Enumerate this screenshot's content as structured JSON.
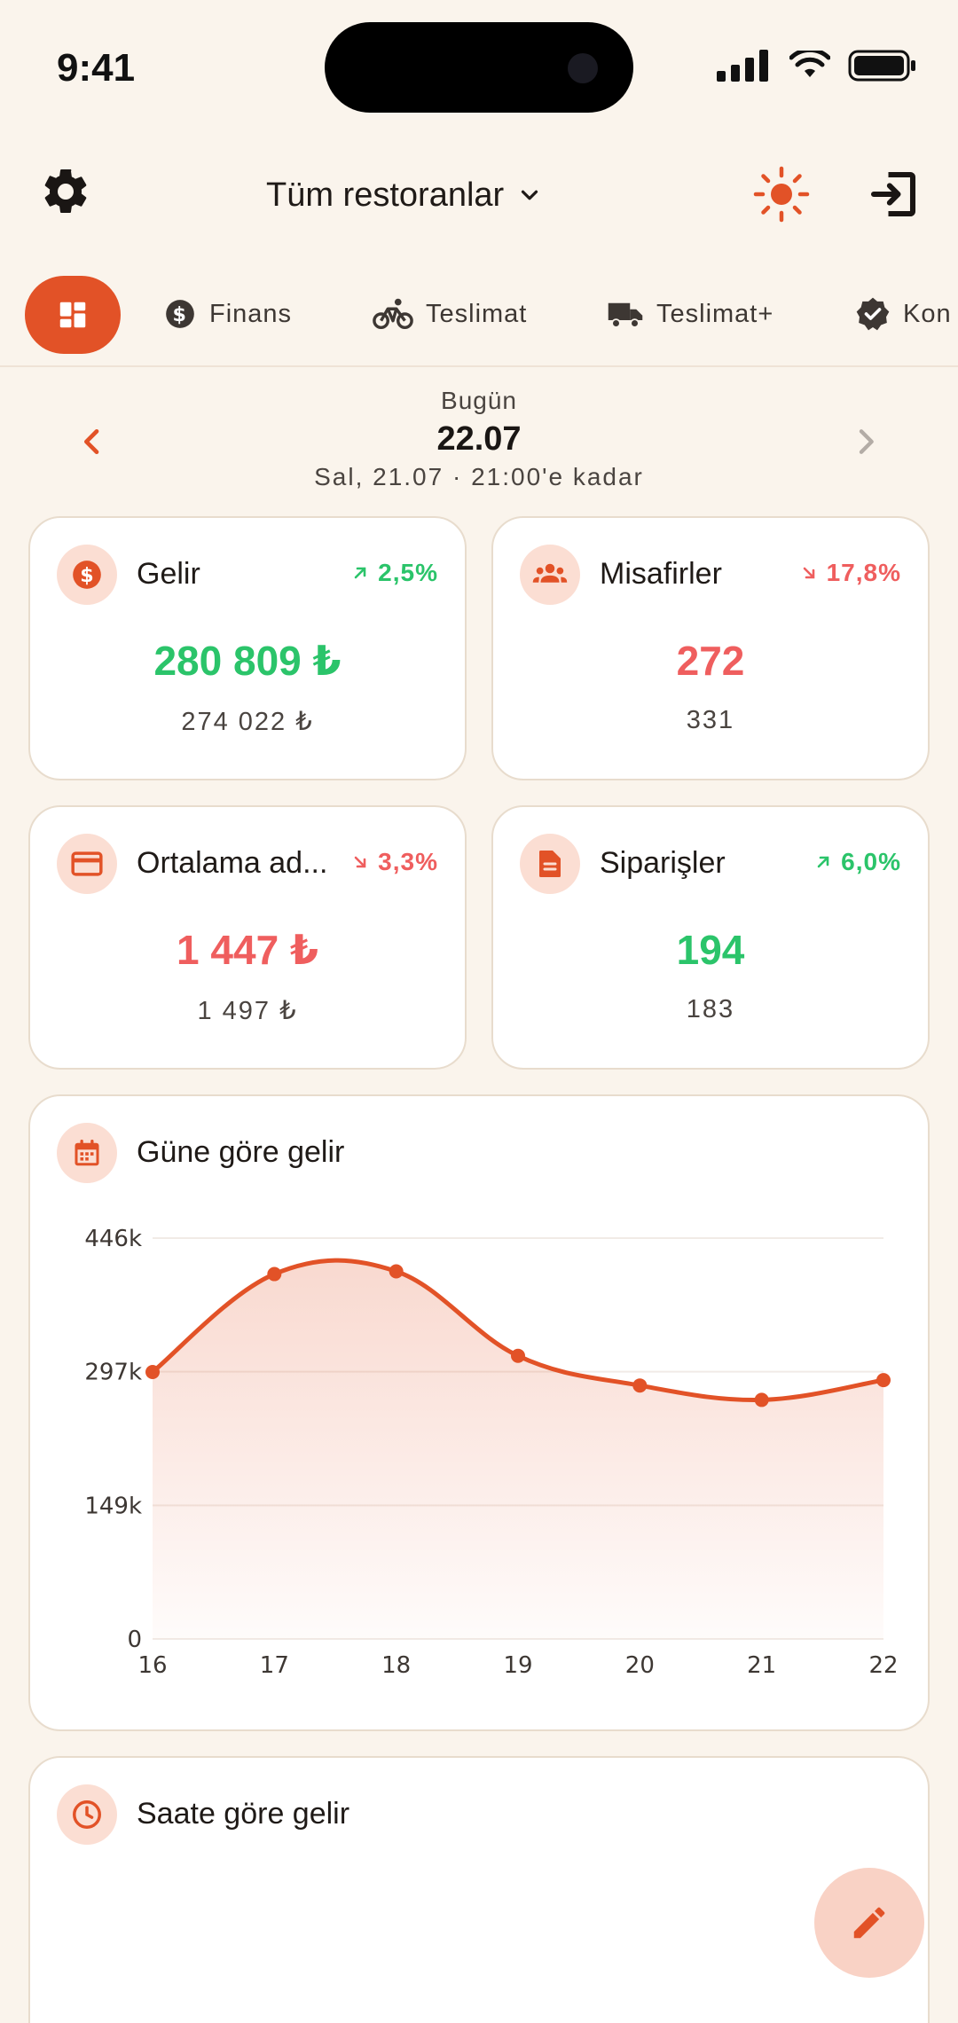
{
  "status_bar": {
    "time": "9:41"
  },
  "header": {
    "restaurant_selector": "Tüm restoranlar",
    "icons": {
      "settings": "gear-icon",
      "theme": "sun-icon",
      "logout": "logout-icon"
    }
  },
  "tabs": [
    {
      "label": "",
      "icon": "dashboard-icon",
      "active": true
    },
    {
      "label": "Finans",
      "icon": "dollar-circle-icon"
    },
    {
      "label": "Teslimat",
      "icon": "bicycle-icon"
    },
    {
      "label": "Teslimat+",
      "icon": "truck-icon"
    },
    {
      "label": "Kon",
      "icon": "verified-icon"
    }
  ],
  "date_nav": {
    "today_label": "Bugün",
    "date": "22.07",
    "compare_text": "Sal, 21.07 · 21:00'e kadar"
  },
  "kpis": [
    {
      "title": "Gelir",
      "delta": "2,5%",
      "trend": "up",
      "value": "280 809 ₺",
      "previous": "274 022 ₺",
      "icon": "dollar-circle-icon"
    },
    {
      "title": "Misafirler",
      "delta": "17,8%",
      "trend": "down",
      "value": "272",
      "previous": "331",
      "icon": "group-icon"
    },
    {
      "title": "Ortalama ad...",
      "delta": "3,3%",
      "trend": "down",
      "value": "1 447 ₺",
      "previous": "1 497 ₺",
      "icon": "credit-card-icon"
    },
    {
      "title": "Siparişler",
      "delta": "6,0%",
      "trend": "up",
      "value": "194",
      "previous": "183",
      "icon": "document-icon"
    }
  ],
  "charts": {
    "daily_title": "Güne göre gelir",
    "hourly_title": "Saate göre gelir"
  },
  "chart_data": {
    "type": "area",
    "categories": [
      "16",
      "17",
      "18",
      "19",
      "20",
      "21",
      "22"
    ],
    "values": [
      297000,
      406000,
      409000,
      315000,
      282000,
      266000,
      288000
    ],
    "y_ticks": [
      "0",
      "149k",
      "297k",
      "446k"
    ],
    "ylim": [
      0,
      446000
    ],
    "grid": true,
    "color": "#e25227"
  },
  "colors": {
    "accent": "#e25227",
    "up": "#2bc46a",
    "down": "#ef5e5e",
    "background": "#faf4ec"
  }
}
